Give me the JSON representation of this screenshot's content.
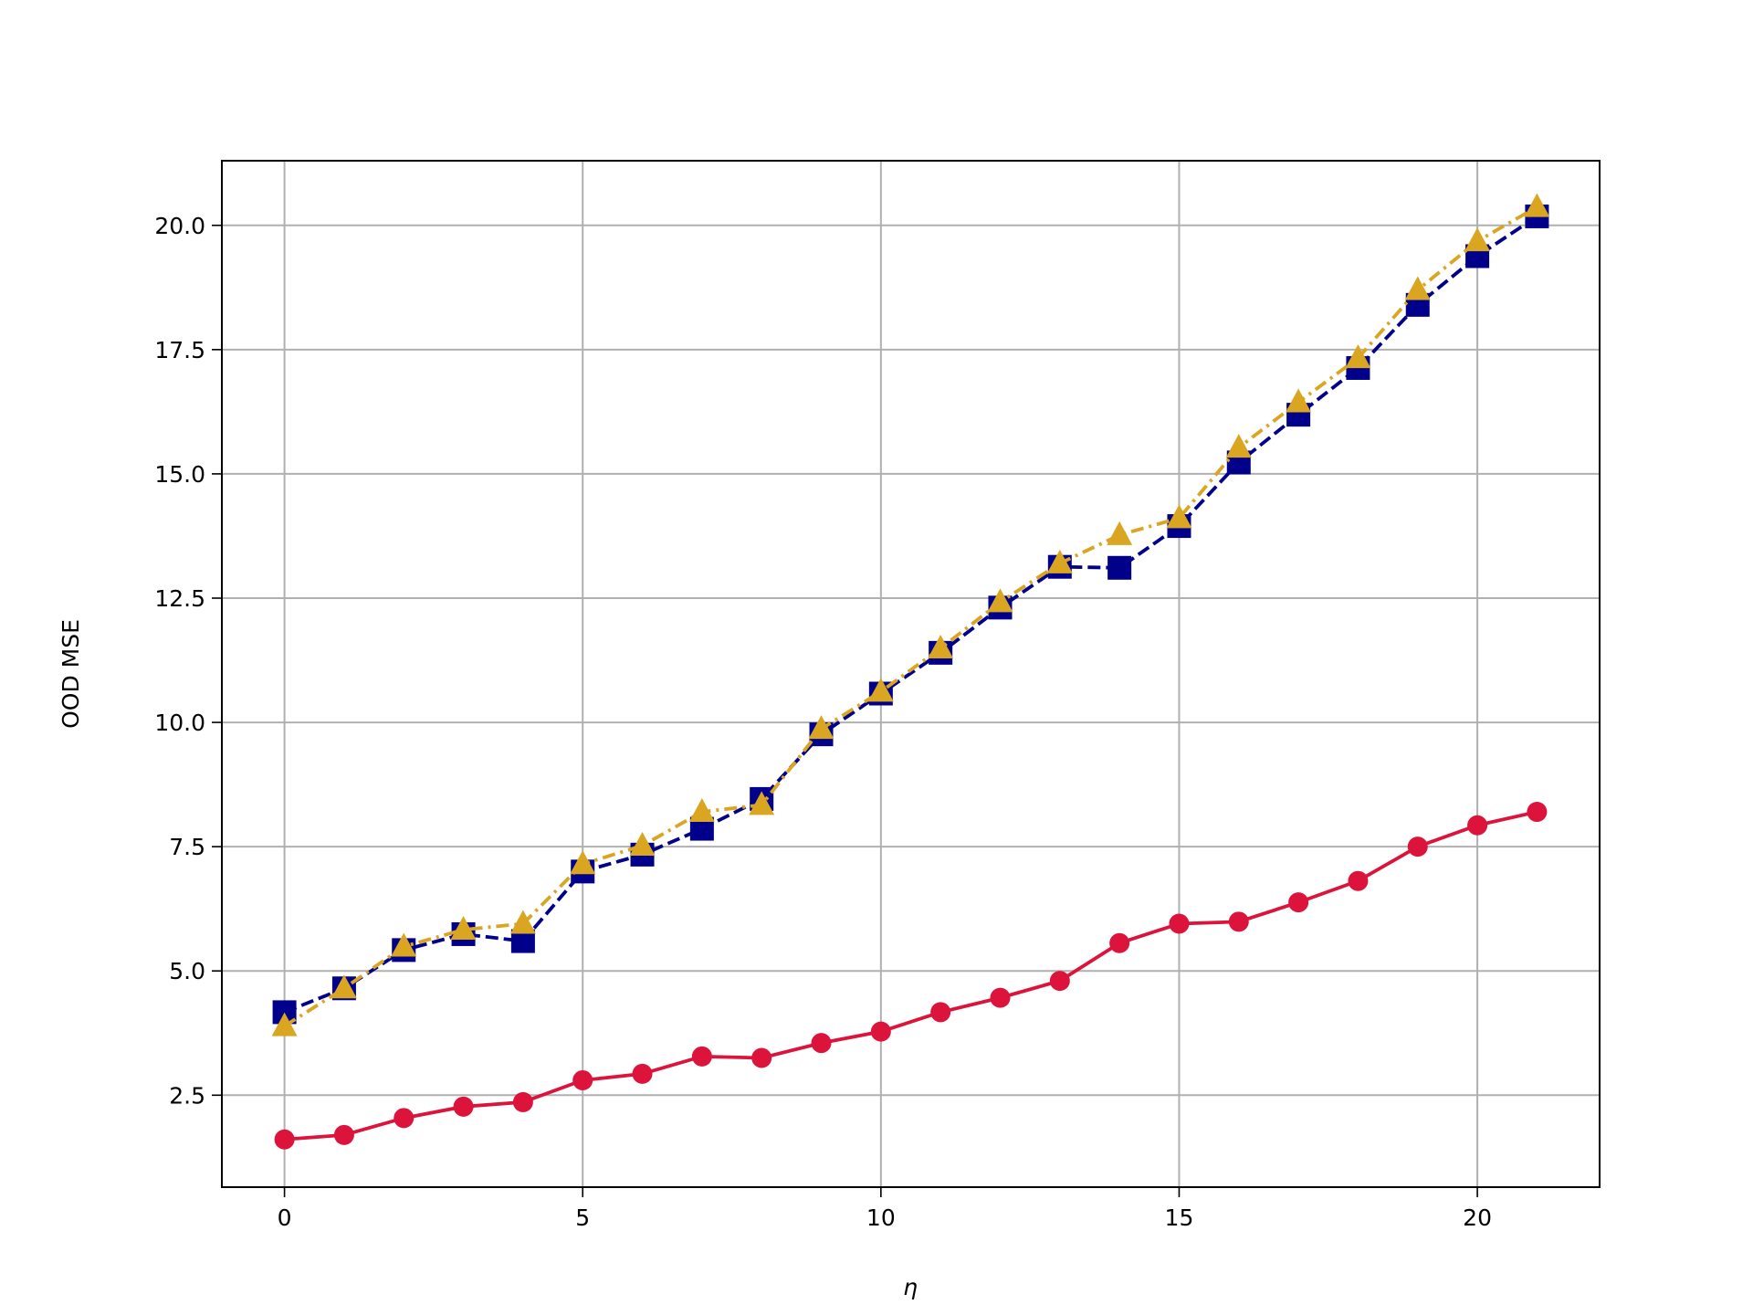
{
  "chart_data": {
    "type": "line",
    "xlabel": "η",
    "ylabel": "OOD MSE",
    "x": [
      0,
      1,
      2,
      3,
      4,
      5,
      6,
      7,
      8,
      9,
      10,
      11,
      12,
      13,
      14,
      15,
      16,
      17,
      18,
      19,
      20,
      21
    ],
    "series": [
      {
        "color": "#dc143c",
        "marker": "circle",
        "linestyle": "solid",
        "values": [
          1.61,
          1.7,
          2.04,
          2.27,
          2.36,
          2.8,
          2.93,
          3.28,
          3.25,
          3.55,
          3.78,
          4.17,
          4.46,
          4.8,
          5.56,
          5.95,
          5.99,
          6.38,
          6.81,
          7.5,
          7.93,
          8.2
        ]
      },
      {
        "color": "#00008b",
        "marker": "square",
        "linestyle": "dashed",
        "values": [
          4.17,
          4.65,
          5.42,
          5.74,
          5.6,
          7.0,
          7.34,
          7.86,
          8.46,
          9.76,
          10.58,
          11.4,
          12.31,
          13.13,
          13.11,
          13.95,
          15.23,
          16.19,
          17.13,
          18.4,
          19.38,
          20.18
        ]
      },
      {
        "color": "#daa520",
        "marker": "triangle",
        "linestyle": "dashdot",
        "values": [
          3.89,
          4.65,
          5.49,
          5.83,
          5.95,
          7.15,
          7.52,
          8.2,
          8.34,
          9.87,
          10.62,
          11.49,
          12.42,
          13.2,
          13.77,
          14.11,
          15.53,
          16.44,
          17.33,
          18.7,
          19.68,
          20.37
        ]
      }
    ],
    "xlim": [
      -1.05,
      22.05
    ],
    "ylim": [
      0.65,
      21.3
    ],
    "xticks": [
      0,
      5,
      10,
      15,
      20
    ],
    "yticks": [
      2.5,
      {
        "value": 5,
        "label": "5.0"
      },
      7.5,
      {
        "value": 10,
        "label": "10.0"
      },
      12.5,
      {
        "value": 15,
        "label": "15.0"
      },
      17.5,
      {
        "value": 20,
        "label": "20.0"
      }
    ],
    "grid": true
  }
}
